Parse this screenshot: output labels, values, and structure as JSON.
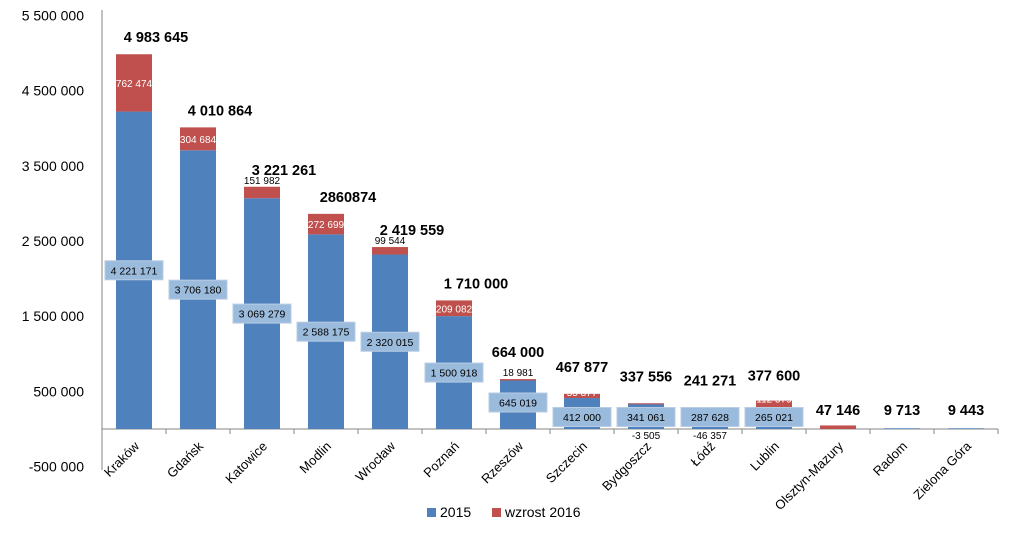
{
  "colors": {
    "base": "#4F81BD",
    "increase": "#C0504D",
    "label_box": "#9BBBDC"
  },
  "chart_data": {
    "type": "bar",
    "stacked": true,
    "categories": [
      "Kraków",
      "Gdańsk",
      "Katowice",
      "Modlin",
      "Wrocław",
      "Poznań",
      "Rzeszów",
      "Szczecin",
      "Bydgoszcz",
      "Łódź",
      "Lublin",
      "Olsztyn-Mazury",
      "Radom",
      "Zielona Góra"
    ],
    "series": [
      {
        "name": "2015",
        "values": [
          4221171,
          3706180,
          3069279,
          2588175,
          2320015,
          1500918,
          645019,
          412000,
          341061,
          287628,
          265021,
          0,
          9713,
          9443
        ]
      },
      {
        "name": "wzrost 2016",
        "values": [
          762474,
          304684,
          151982,
          272699,
          99544,
          209082,
          18981,
          55877,
          -3505,
          -46357,
          112579,
          47146,
          0,
          0
        ]
      }
    ],
    "base_labels": [
      "4 221 171",
      "3 706 180",
      "3 069 279",
      "2 588 175",
      "2 320 015",
      "1 500 918",
      "645 019",
      "412 000",
      "341 061",
      "287 628",
      "265 021",
      "",
      "",
      ""
    ],
    "increase_labels": [
      "762 474",
      "304 684",
      "151 982",
      "272 699",
      "99 544",
      "209 082",
      "18 981",
      "55 877",
      "-3 505",
      "-46 357",
      "112 579",
      "",
      "",
      ""
    ],
    "total_labels": [
      "4 983 645",
      "4 010 864",
      "3 221 261",
      "2860874",
      "2 419 559",
      "1 710 000",
      "664 000",
      "467 877",
      "337 556",
      "241 271",
      "377 600",
      "47 146",
      "9 713",
      "9 443"
    ],
    "yticks": [
      "5 500 000",
      "4 500 000",
      "3 500 000",
      "2 500 000",
      "1 500 000",
      "500 000",
      "-500 000"
    ],
    "ylim": [
      -500000,
      5500000
    ],
    "grid": false,
    "legend_position": "bottom"
  }
}
